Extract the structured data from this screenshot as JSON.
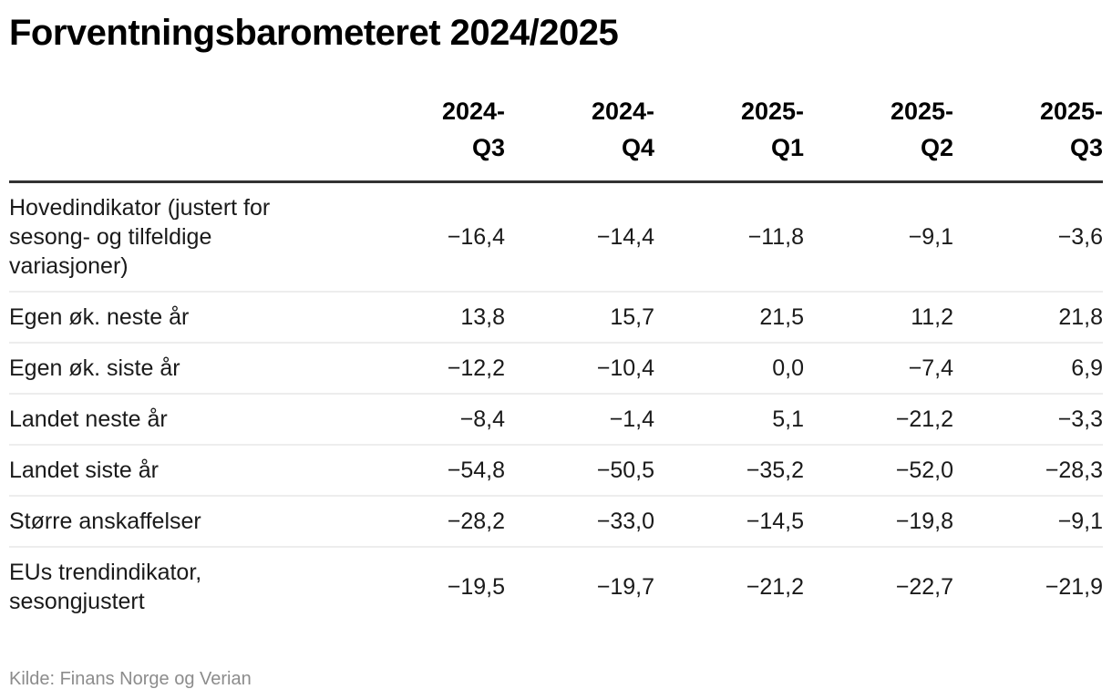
{
  "title": "Forventningsbarometeret 2024/2025",
  "source_note": "Kilde: Finans Norge og Verian",
  "colors": {
    "text": "#1a1a1a",
    "title": "#000000",
    "muted_source": "#8c8c8c",
    "header_rule": "#333333",
    "row_rule": "#ededed",
    "background": "#ffffff"
  },
  "table": {
    "columns": [
      "2024-\nQ3",
      "2024-\nQ4",
      "2025-\nQ1",
      "2025-\nQ2",
      "2025-\nQ3"
    ],
    "rows": [
      {
        "label": "Hovedindikator (justert for sesong- og tilfeldige variasjoner)",
        "values": [
          "−16,4",
          "−14,4",
          "−11,8",
          "−9,1",
          "−3,6"
        ]
      },
      {
        "label": "Egen øk. neste år",
        "values": [
          "13,8",
          "15,7",
          "21,5",
          "11,2",
          "21,8"
        ]
      },
      {
        "label": "Egen øk. siste år",
        "values": [
          "−12,2",
          "−10,4",
          "0,0",
          "−7,4",
          "6,9"
        ]
      },
      {
        "label": "Landet neste år",
        "values": [
          "−8,4",
          "−1,4",
          "5,1",
          "−21,2",
          "−3,3"
        ]
      },
      {
        "label": "Landet siste år",
        "values": [
          "−54,8",
          "−50,5",
          "−35,2",
          "−52,0",
          "−28,3"
        ]
      },
      {
        "label": "Større anskaffelser",
        "values": [
          "−28,2",
          "−33,0",
          "−14,5",
          "−19,8",
          "−9,1"
        ]
      },
      {
        "label": "EUs trendindikator, sesongjustert",
        "values": [
          "−19,5",
          "−19,7",
          "−21,2",
          "−22,7",
          "−21,9"
        ]
      }
    ]
  },
  "chart_data": {
    "type": "table",
    "title": "Forventningsbarometeret 2024/2025",
    "categories": [
      "2024-Q3",
      "2024-Q4",
      "2025-Q1",
      "2025-Q2",
      "2025-Q3"
    ],
    "series": [
      {
        "name": "Hovedindikator (justert for sesong- og tilfeldige variasjoner)",
        "values": [
          -16.4,
          -14.4,
          -11.8,
          -9.1,
          -3.6
        ]
      },
      {
        "name": "Egen øk. neste år",
        "values": [
          13.8,
          15.7,
          21.5,
          11.2,
          21.8
        ]
      },
      {
        "name": "Egen øk. siste år",
        "values": [
          -12.2,
          -10.4,
          0.0,
          -7.4,
          6.9
        ]
      },
      {
        "name": "Landet neste år",
        "values": [
          -8.4,
          -1.4,
          5.1,
          -21.2,
          -3.3
        ]
      },
      {
        "name": "Landet siste år",
        "values": [
          -54.8,
          -50.5,
          -35.2,
          -52.0,
          -28.3
        ]
      },
      {
        "name": "Større anskaffelser",
        "values": [
          -28.2,
          -33.0,
          -14.5,
          -19.8,
          -9.1
        ]
      },
      {
        "name": "EUs trendindikator, sesongjustert",
        "values": [
          -19.5,
          -19.7,
          -21.2,
          -22.7,
          -21.9
        ]
      }
    ],
    "legend_position": "none",
    "grid": "horizontal-row-rules",
    "source": "Kilde: Finans Norge og Verian",
    "number_format": "decimal-comma, one decimal"
  }
}
